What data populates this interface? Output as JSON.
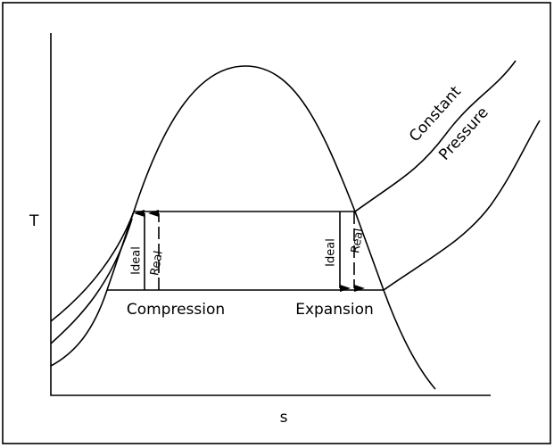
{
  "axes": {
    "y_label": "T",
    "x_label": "s"
  },
  "curve_label": {
    "line1": "Constant",
    "line2": "Pressure"
  },
  "compression": {
    "label": "Compression",
    "ideal": "Ideal",
    "real": "Real"
  },
  "expansion": {
    "label": "Expansion",
    "ideal": "Ideal",
    "real": "Real"
  }
}
